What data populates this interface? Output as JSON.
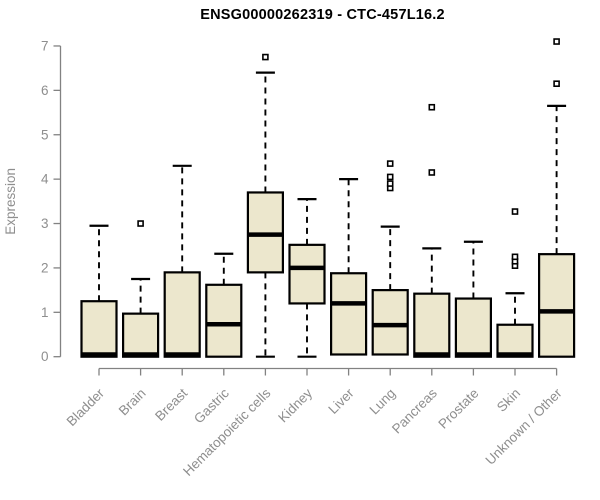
{
  "title": "ENSG00000262319 - CTC-457L16.2",
  "colors": {
    "box_fill": "#ece7cd",
    "box_stroke": "#000000",
    "median": "#000000",
    "whisker": "#000000",
    "outlier_stroke": "#000000",
    "outlier_fill": "#ffffff",
    "axis_line": "#828282",
    "axis_text": "#8e8e8e",
    "title_text": "#000000",
    "background": "#ffffff"
  },
  "chart_data": {
    "type": "boxplot",
    "title": "ENSG00000262319 - CTC-457L16.2",
    "xlabel": "",
    "ylabel": "Expression",
    "ylim": [
      0,
      7
    ],
    "yticks": [
      0,
      1,
      2,
      3,
      4,
      5,
      6,
      7
    ],
    "grid": false,
    "legend": "none",
    "categories": [
      "Bladder",
      "Brain",
      "Breast",
      "Gastric",
      "Hematopoietic cells",
      "Kidney",
      "Liver",
      "Lung",
      "Pancreas",
      "Prostate",
      "Skin",
      "Unknown / Other"
    ],
    "boxes": [
      {
        "name": "Bladder",
        "whisker_low": 0,
        "q1": 0,
        "median": 0.05,
        "q3": 1.25,
        "whisker_high": 2.95,
        "outliers": []
      },
      {
        "name": "Brain",
        "whisker_low": 0,
        "q1": 0,
        "median": 0.05,
        "q3": 0.97,
        "whisker_high": 1.75,
        "outliers": [
          3.0
        ]
      },
      {
        "name": "Breast",
        "whisker_low": 0,
        "q1": 0,
        "median": 0.05,
        "q3": 1.9,
        "whisker_high": 4.3,
        "outliers": []
      },
      {
        "name": "Gastric",
        "whisker_low": 0,
        "q1": 0,
        "median": 0.73,
        "q3": 1.62,
        "whisker_high": 2.32,
        "outliers": []
      },
      {
        "name": "Hematopoietic cells",
        "whisker_low": 0,
        "q1": 1.9,
        "median": 2.75,
        "q3": 3.7,
        "whisker_high": 6.4,
        "outliers": [
          6.75
        ]
      },
      {
        "name": "Kidney",
        "whisker_low": 0,
        "q1": 1.2,
        "median": 2.0,
        "q3": 2.52,
        "whisker_high": 3.55,
        "outliers": []
      },
      {
        "name": "Liver",
        "whisker_low": 0.05,
        "q1": 0.05,
        "median": 1.2,
        "q3": 1.88,
        "whisker_high": 4.0,
        "outliers": []
      },
      {
        "name": "Lung",
        "whisker_low": 0.05,
        "q1": 0.05,
        "median": 0.71,
        "q3": 1.5,
        "whisker_high": 2.93,
        "outliers": [
          3.8,
          3.9,
          4.05,
          4.35
        ]
      },
      {
        "name": "Pancreas",
        "whisker_low": 0,
        "q1": 0,
        "median": 0.05,
        "q3": 1.42,
        "whisker_high": 2.44,
        "outliers": [
          4.15,
          5.62
        ]
      },
      {
        "name": "Prostate",
        "whisker_low": 0,
        "q1": 0,
        "median": 0.05,
        "q3": 1.31,
        "whisker_high": 2.59,
        "outliers": []
      },
      {
        "name": "Skin",
        "whisker_low": 0,
        "q1": 0,
        "median": 0.05,
        "q3": 0.72,
        "whisker_high": 1.43,
        "outliers": [
          2.05,
          2.15,
          2.25,
          3.27
        ]
      },
      {
        "name": "Unknown / Other",
        "whisker_low": 0,
        "q1": 0,
        "median": 1.02,
        "q3": 2.31,
        "whisker_high": 5.65,
        "outliers": [
          6.15,
          7.1
        ]
      }
    ]
  }
}
